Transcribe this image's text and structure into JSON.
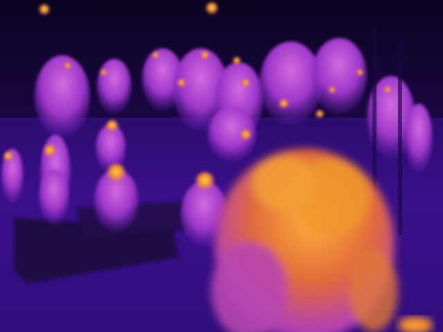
{
  "image": {
    "kind": "thermal-camera-frame",
    "palette": {
      "cold": "#0b0420",
      "cool": "#2a0a5e",
      "mid": "#5b1aa6",
      "warm": "#b23fd1",
      "hot": "#f08a2a",
      "hottest": "#ffd24a"
    }
  }
}
